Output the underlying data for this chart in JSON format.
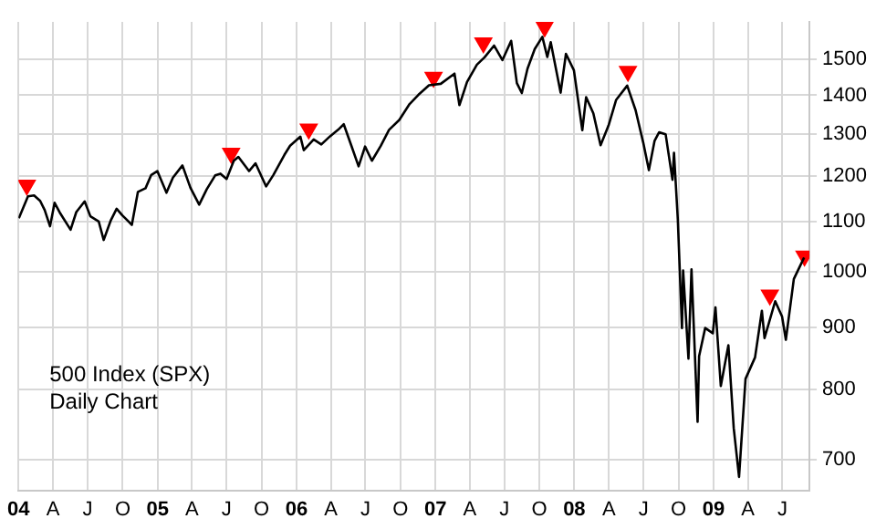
{
  "chart_data": {
    "type": "line",
    "title": "500 Index (SPX)",
    "subtitle": "Daily Chart",
    "log": "y",
    "grid": true,
    "legend": false,
    "marker": "none",
    "line_style": "solid",
    "xlim": [
      "2004-01-01",
      "2009-09-10"
    ],
    "ylim": [
      660,
      1610
    ],
    "yticks": [
      700,
      800,
      900,
      1000,
      1100,
      1200,
      1300,
      1400,
      1500
    ],
    "xticks": [
      {
        "value": "2004-01-01",
        "label": "04"
      },
      {
        "value": "2004-04-01",
        "label": "A"
      },
      {
        "value": "2004-07-01",
        "label": "J"
      },
      {
        "value": "2004-10-01",
        "label": "O"
      },
      {
        "value": "2005-01-01",
        "label": "05"
      },
      {
        "value": "2005-04-01",
        "label": "A"
      },
      {
        "value": "2005-07-01",
        "label": "J"
      },
      {
        "value": "2005-10-01",
        "label": "O"
      },
      {
        "value": "2006-01-01",
        "label": "06"
      },
      {
        "value": "2006-04-01",
        "label": "A"
      },
      {
        "value": "2006-07-01",
        "label": "J"
      },
      {
        "value": "2006-10-01",
        "label": "O"
      },
      {
        "value": "2007-01-01",
        "label": "07"
      },
      {
        "value": "2007-04-01",
        "label": "A"
      },
      {
        "value": "2007-07-01",
        "label": "J"
      },
      {
        "value": "2007-10-01",
        "label": "O"
      },
      {
        "value": "2008-01-01",
        "label": "08"
      },
      {
        "value": "2008-04-01",
        "label": "A"
      },
      {
        "value": "2008-07-01",
        "label": "J"
      },
      {
        "value": "2008-10-01",
        "label": "O"
      },
      {
        "value": "2009-01-01",
        "label": "09"
      },
      {
        "value": "2009-04-01",
        "label": "A"
      },
      {
        "value": "2009-07-01",
        "label": "J"
      }
    ],
    "series": [
      {
        "color": "#000000",
        "x": [
          "2004-01-02",
          "2004-01-26",
          "2004-02-11",
          "2004-02-27",
          "2004-03-10",
          "2004-03-24",
          "2004-04-05",
          "2004-04-20",
          "2004-05-17",
          "2004-06-01",
          "2004-06-23",
          "2004-07-08",
          "2004-07-30",
          "2004-08-12",
          "2004-08-31",
          "2004-09-15",
          "2004-09-30",
          "2004-10-14",
          "2004-10-25",
          "2004-11-10",
          "2004-11-30",
          "2004-12-15",
          "2004-12-31",
          "2005-01-24",
          "2005-02-10",
          "2005-03-07",
          "2005-03-28",
          "2005-04-20",
          "2005-05-10",
          "2005-06-01",
          "2005-06-15",
          "2005-07-01",
          "2005-07-20",
          "2005-08-01",
          "2005-08-29",
          "2005-09-15",
          "2005-10-13",
          "2005-11-01",
          "2005-11-30",
          "2005-12-15",
          "2006-01-11",
          "2006-01-20",
          "2006-02-15",
          "2006-03-07",
          "2006-03-30",
          "2006-04-20",
          "2006-05-05",
          "2006-05-25",
          "2006-06-13",
          "2006-06-30",
          "2006-07-18",
          "2006-08-10",
          "2006-09-01",
          "2006-09-28",
          "2006-10-25",
          "2006-11-17",
          "2006-12-15",
          "2007-01-15",
          "2007-02-20",
          "2007-03-05",
          "2007-03-25",
          "2007-04-20",
          "2007-05-10",
          "2007-06-04",
          "2007-06-26",
          "2007-07-19",
          "2007-08-03",
          "2007-08-16",
          "2007-08-31",
          "2007-09-19",
          "2007-10-09",
          "2007-10-22",
          "2007-10-31",
          "2007-11-26",
          "2007-12-10",
          "2007-12-31",
          "2008-01-22",
          "2008-02-01",
          "2008-02-20",
          "2008-03-10",
          "2008-03-31",
          "2008-04-20",
          "2008-05-19",
          "2008-06-10",
          "2008-06-30",
          "2008-07-15",
          "2008-07-30",
          "2008-08-11",
          "2008-08-28",
          "2008-09-15",
          "2008-09-19",
          "2008-09-29",
          "2008-10-10",
          "2008-10-13",
          "2008-10-27",
          "2008-11-04",
          "2008-11-20",
          "2008-11-24",
          "2008-12-10",
          "2008-12-30",
          "2009-01-06",
          "2009-01-20",
          "2009-02-09",
          "2009-02-23",
          "2009-03-09",
          "2009-03-26",
          "2009-04-20",
          "2009-05-08",
          "2009-05-15",
          "2009-06-12",
          "2009-06-30",
          "2009-07-10",
          "2009-07-31",
          "2009-08-27"
        ],
        "values": [
          1108,
          1155,
          1157,
          1145,
          1125,
          1091,
          1141,
          1118,
          1084,
          1121,
          1144,
          1112,
          1101,
          1063,
          1104,
          1128,
          1114,
          1103,
          1094,
          1165,
          1173,
          1203,
          1212,
          1163,
          1197,
          1225,
          1174,
          1137,
          1171,
          1202,
          1206,
          1194,
          1236,
          1245,
          1212,
          1230,
          1177,
          1203,
          1250,
          1272,
          1294,
          1261,
          1287,
          1275,
          1295,
          1311,
          1325,
          1272,
          1223,
          1270,
          1236,
          1271,
          1311,
          1336,
          1377,
          1401,
          1427,
          1431,
          1459,
          1374,
          1436,
          1484,
          1505,
          1539,
          1497,
          1553,
          1433,
          1406,
          1473,
          1529,
          1565,
          1506,
          1549,
          1407,
          1515,
          1468,
          1310,
          1395,
          1353,
          1273,
          1322,
          1388,
          1426,
          1361,
          1280,
          1214,
          1284,
          1305,
          1300,
          1192,
          1255,
          1106,
          899,
          1003,
          848,
          1005,
          752,
          852,
          899,
          890,
          935,
          805,
          870,
          743,
          677,
          816,
          850,
          929,
          882,
          946,
          919,
          879,
          987,
          1028
        ]
      },
      {
        "type": "scatter",
        "color": "#ff0000",
        "marker": "triangle",
        "x": [
          "2004-01-23",
          "2005-07-13",
          "2006-02-02",
          "2006-12-27",
          "2007-05-07",
          "2007-10-15",
          "2008-05-21",
          "2009-05-29",
          "2009-08-28"
        ],
        "values": [
          1180,
          1254,
          1313,
          1449,
          1547,
          1595,
          1465,
          957,
          1031
        ]
      }
    ]
  }
}
